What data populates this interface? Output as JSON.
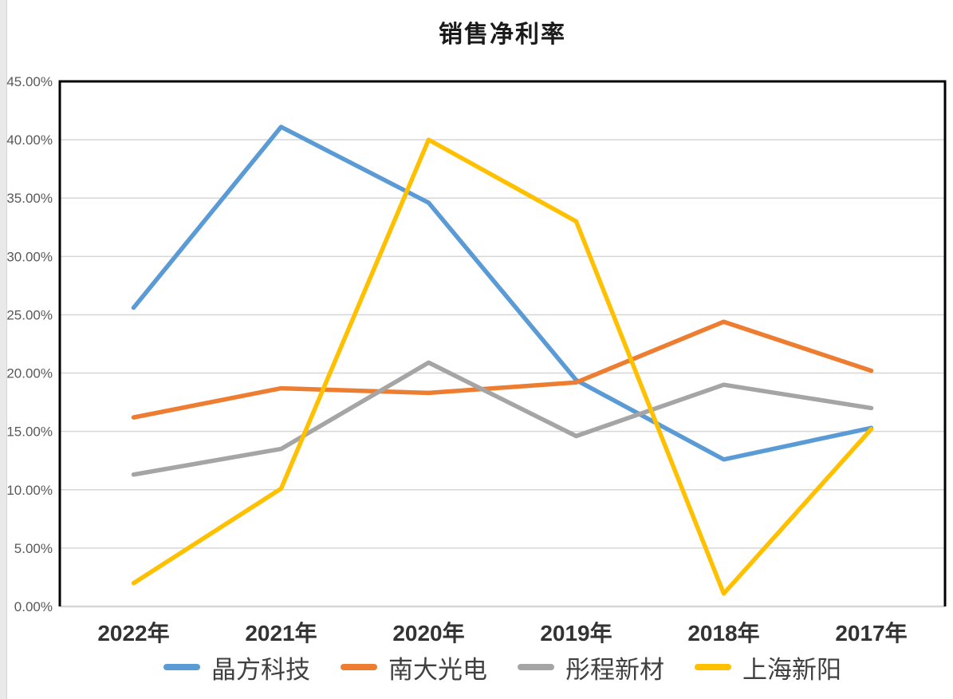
{
  "chart_data": {
    "type": "line",
    "title": "销售净利率",
    "categories": [
      "2022年",
      "2021年",
      "2020年",
      "2019年",
      "2018年",
      "2017年"
    ],
    "series": [
      {
        "name": "晶方科技",
        "color": "#5B9BD5",
        "values": [
          25.6,
          41.1,
          34.6,
          19.4,
          12.6,
          15.3
        ]
      },
      {
        "name": "南大光电",
        "color": "#ED7D31",
        "values": [
          16.2,
          18.7,
          18.3,
          19.2,
          24.4,
          20.2
        ]
      },
      {
        "name": "彤程新材",
        "color": "#A5A5A5",
        "values": [
          11.3,
          13.5,
          20.9,
          14.6,
          19.0,
          17.0
        ]
      },
      {
        "name": "上海新阳",
        "color": "#FFC000",
        "values": [
          2.0,
          10.1,
          40.0,
          33.0,
          1.1,
          15.2
        ]
      }
    ],
    "ylim": [
      0,
      45
    ],
    "ytick_step": 5,
    "ytick_labels": [
      "0.00%",
      "5.00%",
      "10.00%",
      "15.00%",
      "20.00%",
      "25.00%",
      "30.00%",
      "35.00%",
      "40.00%",
      "45.00%"
    ],
    "xlabel": "",
    "ylabel": "",
    "grid": true,
    "legend_position": "bottom",
    "colors": {
      "gridline": "#D6D6D6",
      "plot_border": "#000000",
      "axis_text": "#595959",
      "category_text": "#333333"
    }
  }
}
